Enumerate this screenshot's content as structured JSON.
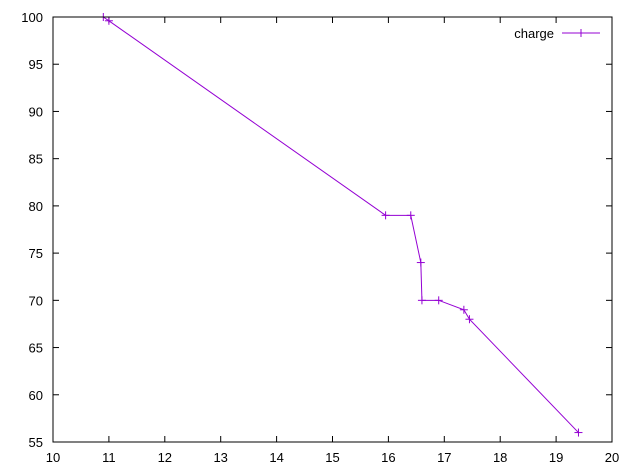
{
  "chart_data": {
    "type": "line",
    "title": "",
    "xlabel": "",
    "ylabel": "",
    "xlim": [
      10,
      20
    ],
    "ylim": [
      55,
      100
    ],
    "xticks": [
      10,
      11,
      12,
      13,
      14,
      15,
      16,
      17,
      18,
      19,
      20
    ],
    "yticks": [
      55,
      60,
      65,
      70,
      75,
      80,
      85,
      90,
      95,
      100
    ],
    "grid": false,
    "legend_position": "top-right",
    "series": [
      {
        "name": "charge",
        "color": "#9400d3",
        "marker": "plus",
        "points": [
          {
            "x": 10.9,
            "y": 100
          },
          {
            "x": 11.0,
            "y": 99.6
          },
          {
            "x": 15.95,
            "y": 79
          },
          {
            "x": 16.4,
            "y": 79
          },
          {
            "x": 16.58,
            "y": 74
          },
          {
            "x": 16.6,
            "y": 70
          },
          {
            "x": 16.9,
            "y": 70
          },
          {
            "x": 17.35,
            "y": 69
          },
          {
            "x": 17.45,
            "y": 68
          },
          {
            "x": 19.4,
            "y": 56
          }
        ]
      }
    ]
  }
}
